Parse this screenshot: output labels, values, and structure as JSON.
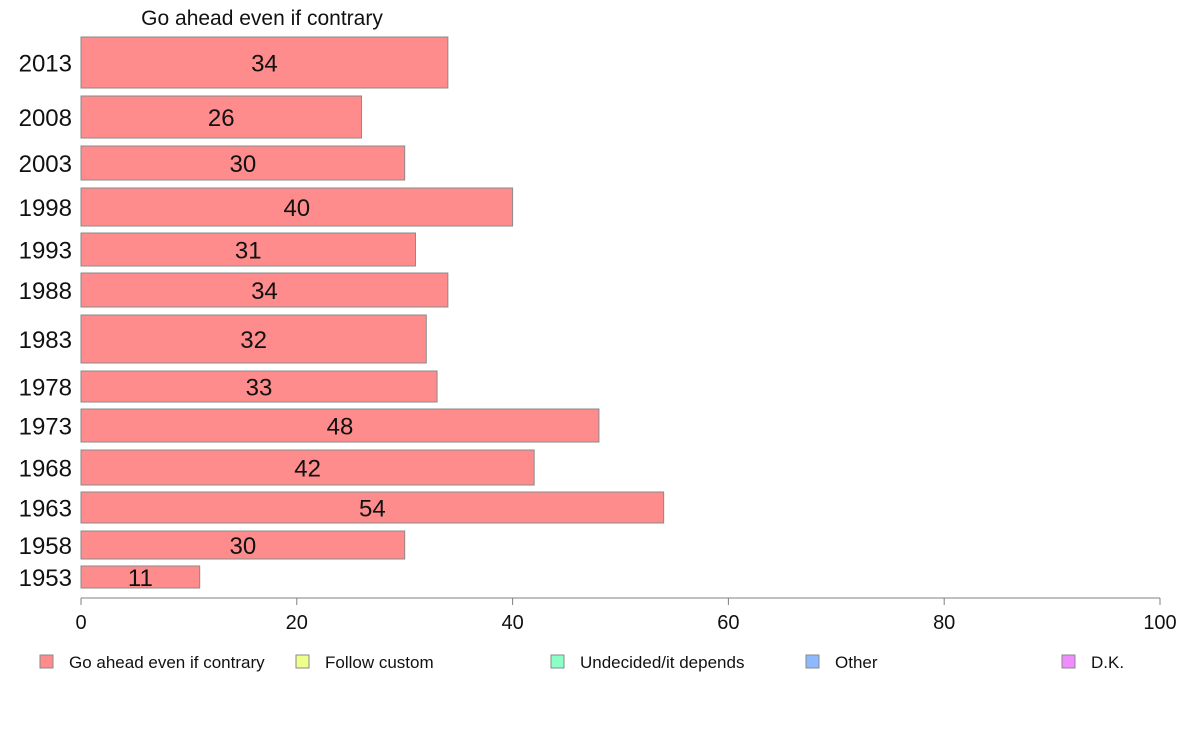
{
  "chart_data": {
    "type": "bar",
    "orientation": "horizontal",
    "title": "Go ahead even if contrary",
    "categories": [
      "2013",
      "2008",
      "2003",
      "1998",
      "1993",
      "1988",
      "1983",
      "1978",
      "1973",
      "1968",
      "1963",
      "1958",
      "1953"
    ],
    "values": [
      34,
      26,
      30,
      40,
      31,
      34,
      32,
      33,
      48,
      42,
      54,
      30,
      11
    ],
    "data_labels": [
      "34",
      "26",
      "30",
      "40",
      "31",
      "34",
      "32",
      "33",
      "48",
      "42",
      "54",
      "30",
      "11"
    ],
    "xlim": [
      0,
      100
    ],
    "xticks": [
      0,
      20,
      40,
      60,
      80,
      100
    ],
    "xtick_labels": [
      "0",
      "20",
      "40",
      "60",
      "80",
      "100"
    ],
    "grid": false,
    "bar_color": "#ff8c8c",
    "legend": {
      "placement": "bottom",
      "items": [
        {
          "label": "Go ahead even if contrary",
          "color": "#ff8c8c"
        },
        {
          "label": "Follow custom",
          "color": "#eeff8c"
        },
        {
          "label": "Undecided/it depends",
          "color": "#8cffc6"
        },
        {
          "label": "Other",
          "color": "#8cb9ff"
        },
        {
          "label": "D.K.",
          "color": "#ef8cff"
        }
      ]
    }
  }
}
